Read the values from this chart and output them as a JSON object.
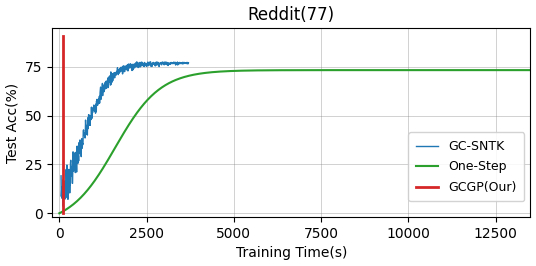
{
  "title": "Reddit(77)",
  "xlabel": "Training Time(s)",
  "ylabel": "Test Acc(%)",
  "xlim": [
    -200,
    13500
  ],
  "ylim": [
    -2,
    95
  ],
  "yticks": [
    0,
    25,
    50,
    75
  ],
  "xticks": [
    0,
    2500,
    5000,
    7500,
    10000,
    12500
  ],
  "legend_entries": [
    "GC-SNTK",
    "One-Step",
    "GCGP(Our)"
  ],
  "line_colors": [
    "#1f77b4",
    "#2ca02c",
    "#d62728"
  ],
  "background_color": "#ffffff",
  "grid": true,
  "sntk_plateau": 77.0,
  "sntk_start_x": 50,
  "sntk_end_x": 3700,
  "onestep_L": 79.5,
  "onestep_k": 0.00155,
  "onestep_x_mid": 1600,
  "gcgp_x": 100,
  "gcgp_y_start": 0,
  "gcgp_y_end": 91
}
